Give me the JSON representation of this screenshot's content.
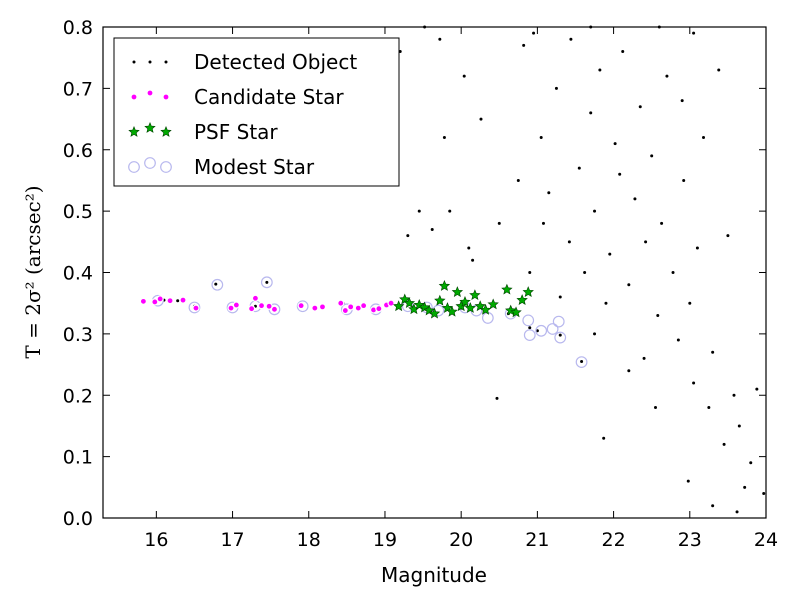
{
  "chart_data": {
    "type": "scatter",
    "xlabel": "Magnitude",
    "ylabel": "T = 2σ² (arcsec²)",
    "xlim": [
      15.3,
      24
    ],
    "ylim": [
      0.0,
      0.8
    ],
    "xticks": [
      "16",
      "17",
      "18",
      "19",
      "20",
      "21",
      "22",
      "23",
      "24"
    ],
    "yticks": [
      "0.0",
      "0.1",
      "0.2",
      "0.3",
      "0.4",
      "0.5",
      "0.6",
      "0.7",
      "0.8"
    ],
    "legend_position": "top-left",
    "grid": false,
    "series": [
      {
        "name": "Detected Object",
        "marker": "dot",
        "color": "#000000",
        "points": [
          [
            15.83,
            0.353
          ],
          [
            16.0,
            0.352
          ],
          [
            16.1,
            0.355
          ],
          [
            16.28,
            0.354
          ],
          [
            16.5,
            0.345
          ],
          [
            16.78,
            0.381
          ],
          [
            16.98,
            0.343
          ],
          [
            17.3,
            0.345
          ],
          [
            17.45,
            0.384
          ],
          [
            17.9,
            0.348
          ],
          [
            18.2,
            0.343
          ],
          [
            18.45,
            0.35
          ],
          [
            18.9,
            0.342
          ],
          [
            19.2,
            0.345
          ],
          [
            19.6,
            0.338
          ],
          [
            20.0,
            0.342
          ],
          [
            20.3,
            0.335
          ],
          [
            20.62,
            0.333
          ],
          [
            20.9,
            0.31
          ],
          [
            21.0,
            0.305
          ],
          [
            21.3,
            0.298
          ],
          [
            21.58,
            0.255
          ],
          [
            20.47,
            0.195
          ],
          [
            19.3,
            0.46
          ],
          [
            19.45,
            0.5
          ],
          [
            19.62,
            0.47
          ],
          [
            19.78,
            0.62
          ],
          [
            19.85,
            0.5
          ],
          [
            20.1,
            0.44
          ],
          [
            20.15,
            0.42
          ],
          [
            20.26,
            0.65
          ],
          [
            20.5,
            0.48
          ],
          [
            20.75,
            0.55
          ],
          [
            20.82,
            0.77
          ],
          [
            20.9,
            0.4
          ],
          [
            21.05,
            0.62
          ],
          [
            21.08,
            0.48
          ],
          [
            21.15,
            0.53
          ],
          [
            21.25,
            0.7
          ],
          [
            21.3,
            0.36
          ],
          [
            21.42,
            0.45
          ],
          [
            21.55,
            0.57
          ],
          [
            21.62,
            0.4
          ],
          [
            21.7,
            0.66
          ],
          [
            21.75,
            0.5
          ],
          [
            21.82,
            0.73
          ],
          [
            21.9,
            0.35
          ],
          [
            21.95,
            0.43
          ],
          [
            22.02,
            0.61
          ],
          [
            22.08,
            0.56
          ],
          [
            22.12,
            0.76
          ],
          [
            22.2,
            0.38
          ],
          [
            22.28,
            0.52
          ],
          [
            22.35,
            0.67
          ],
          [
            22.42,
            0.45
          ],
          [
            22.5,
            0.59
          ],
          [
            22.58,
            0.33
          ],
          [
            22.63,
            0.48
          ],
          [
            22.7,
            0.72
          ],
          [
            22.78,
            0.4
          ],
          [
            22.85,
            0.29
          ],
          [
            22.92,
            0.55
          ],
          [
            23.0,
            0.35
          ],
          [
            23.05,
            0.22
          ],
          [
            23.1,
            0.44
          ],
          [
            23.18,
            0.62
          ],
          [
            23.25,
            0.18
          ],
          [
            23.3,
            0.27
          ],
          [
            23.38,
            0.73
          ],
          [
            23.45,
            0.12
          ],
          [
            23.5,
            0.46
          ],
          [
            23.58,
            0.2
          ],
          [
            23.65,
            0.15
          ],
          [
            23.72,
            0.05
          ],
          [
            23.8,
            0.09
          ],
          [
            23.88,
            0.21
          ],
          [
            23.97,
            0.04
          ],
          [
            21.87,
            0.13
          ],
          [
            22.55,
            0.18
          ],
          [
            22.98,
            0.06
          ],
          [
            23.3,
            0.02
          ],
          [
            23.62,
            0.01
          ],
          [
            22.4,
            0.26
          ],
          [
            22.2,
            0.24
          ],
          [
            21.75,
            0.3
          ],
          [
            19.2,
            0.76
          ],
          [
            19.52,
            0.8
          ],
          [
            20.95,
            0.79
          ],
          [
            21.7,
            0.8
          ],
          [
            22.6,
            0.8
          ],
          [
            23.05,
            0.79
          ],
          [
            19.72,
            0.78
          ],
          [
            20.04,
            0.72
          ],
          [
            21.44,
            0.78
          ],
          [
            22.9,
            0.68
          ]
        ]
      },
      {
        "name": "Candidate Star",
        "marker": "circle",
        "color": "#ff00ff",
        "points": [
          [
            15.83,
            0.353
          ],
          [
            15.98,
            0.352
          ],
          [
            16.05,
            0.357
          ],
          [
            16.18,
            0.354
          ],
          [
            16.35,
            0.355
          ],
          [
            16.52,
            0.342
          ],
          [
            16.98,
            0.342
          ],
          [
            17.05,
            0.347
          ],
          [
            17.25,
            0.341
          ],
          [
            17.3,
            0.358
          ],
          [
            17.38,
            0.346
          ],
          [
            17.48,
            0.345
          ],
          [
            17.55,
            0.34
          ],
          [
            17.9,
            0.346
          ],
          [
            18.08,
            0.342
          ],
          [
            18.18,
            0.344
          ],
          [
            18.42,
            0.35
          ],
          [
            18.48,
            0.338
          ],
          [
            18.55,
            0.344
          ],
          [
            18.65,
            0.342
          ],
          [
            18.72,
            0.346
          ],
          [
            18.85,
            0.339
          ],
          [
            18.92,
            0.341
          ],
          [
            19.02,
            0.347
          ],
          [
            19.08,
            0.35
          ]
        ]
      },
      {
        "name": "PSF Star",
        "marker": "star",
        "color": "#00aa00",
        "points": [
          [
            19.18,
            0.345
          ],
          [
            19.26,
            0.356
          ],
          [
            19.32,
            0.35
          ],
          [
            19.38,
            0.34
          ],
          [
            19.45,
            0.347
          ],
          [
            19.52,
            0.343
          ],
          [
            19.58,
            0.338
          ],
          [
            19.65,
            0.333
          ],
          [
            19.72,
            0.354
          ],
          [
            19.78,
            0.378
          ],
          [
            19.82,
            0.342
          ],
          [
            19.88,
            0.336
          ],
          [
            19.95,
            0.368
          ],
          [
            20.0,
            0.345
          ],
          [
            20.05,
            0.352
          ],
          [
            20.12,
            0.342
          ],
          [
            20.18,
            0.363
          ],
          [
            20.25,
            0.345
          ],
          [
            20.32,
            0.339
          ],
          [
            20.42,
            0.348
          ],
          [
            20.6,
            0.372
          ],
          [
            20.65,
            0.338
          ],
          [
            20.72,
            0.335
          ],
          [
            20.8,
            0.355
          ],
          [
            20.88,
            0.368
          ]
        ]
      },
      {
        "name": "Modest Star",
        "marker": "ring",
        "color": "#b8b8ee",
        "points": [
          [
            16.02,
            0.354
          ],
          [
            16.5,
            0.343
          ],
          [
            16.8,
            0.38
          ],
          [
            17.0,
            0.343
          ],
          [
            17.3,
            0.345
          ],
          [
            17.45,
            0.384
          ],
          [
            17.55,
            0.34
          ],
          [
            17.92,
            0.345
          ],
          [
            18.5,
            0.34
          ],
          [
            18.88,
            0.34
          ],
          [
            19.3,
            0.345
          ],
          [
            19.7,
            0.338
          ],
          [
            20.05,
            0.343
          ],
          [
            20.35,
            0.326
          ],
          [
            20.65,
            0.333
          ],
          [
            20.88,
            0.322
          ],
          [
            20.9,
            0.298
          ],
          [
            21.05,
            0.305
          ],
          [
            21.2,
            0.308
          ],
          [
            21.28,
            0.32
          ],
          [
            21.3,
            0.294
          ],
          [
            21.58,
            0.254
          ],
          [
            19.55,
            0.343
          ],
          [
            20.2,
            0.338
          ]
        ]
      }
    ]
  }
}
